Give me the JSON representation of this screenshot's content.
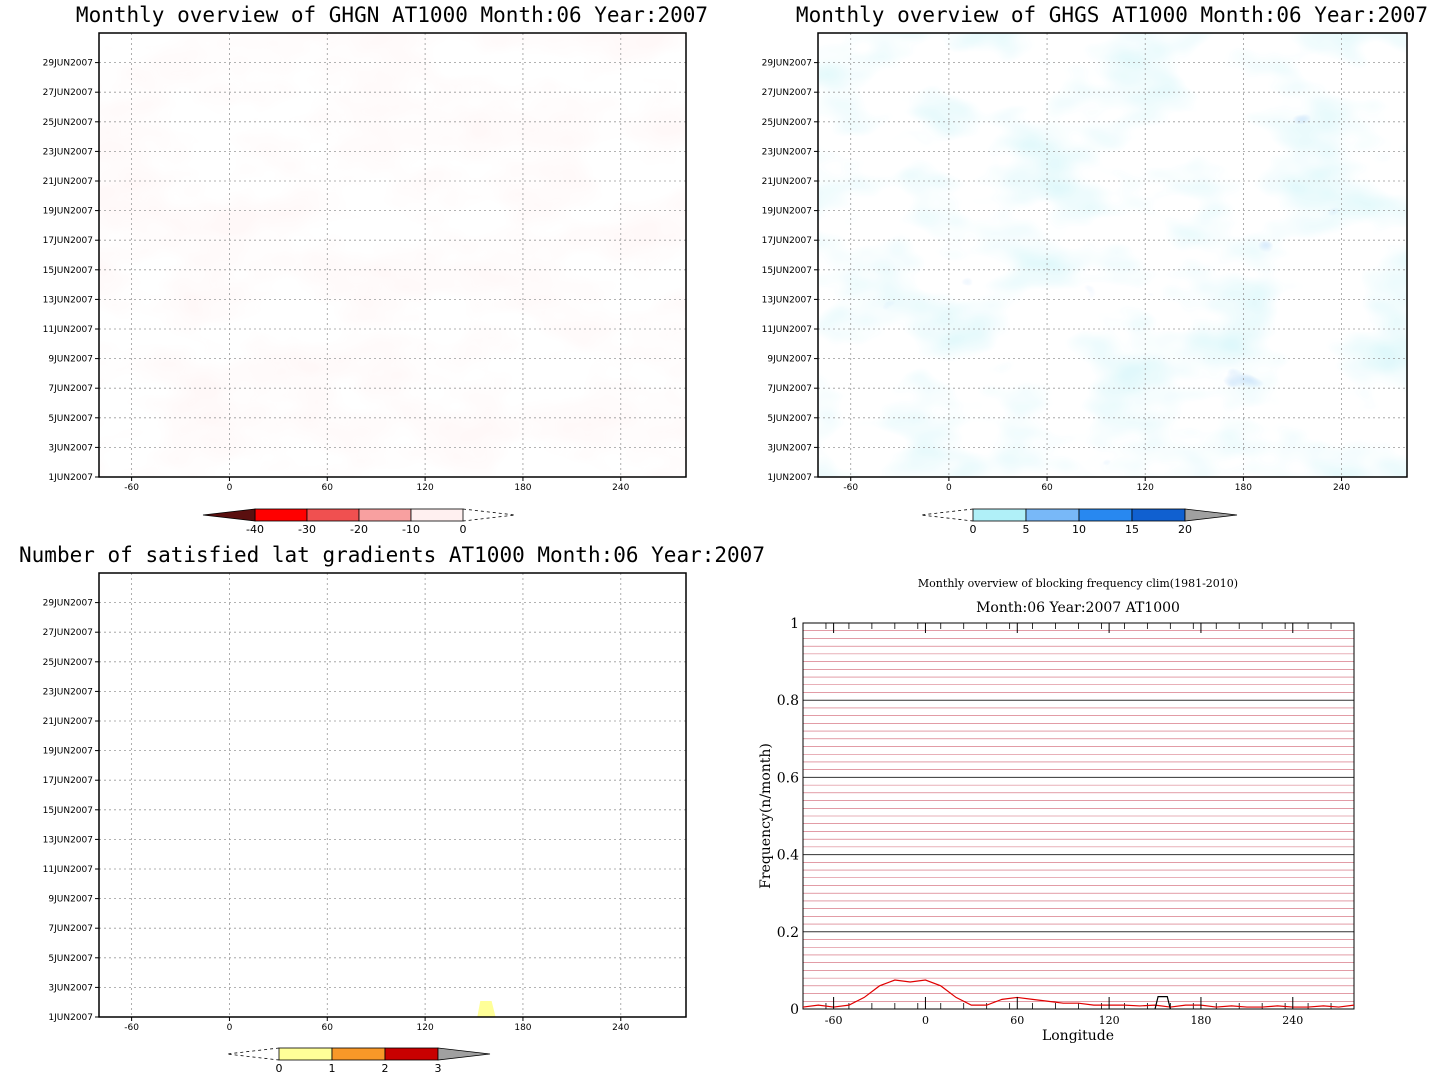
{
  "chart_data": [
    {
      "type": "heatmap",
      "title": "Monthly overview of GHGN AT1000 Month:06 Year:2007",
      "xticks": [
        "-60",
        "0",
        "60",
        "120",
        "180",
        "240"
      ],
      "xtick_values": [
        -60,
        0,
        60,
        120,
        180,
        240
      ],
      "xlim": [
        -80,
        280
      ],
      "yticks": [
        "1JUN2007",
        "3JUN2007",
        "5JUN2007",
        "7JUN2007",
        "9JUN2007",
        "11JUN2007",
        "13JUN2007",
        "15JUN2007",
        "17JUN2007",
        "19JUN2007",
        "21JUN2007",
        "23JUN2007",
        "25JUN2007",
        "27JUN2007",
        "29JUN2007"
      ],
      "colorbar": {
        "labels": [
          "-40",
          "-30",
          "-20",
          "-10",
          "0"
        ],
        "colors": [
          "#5a0f0f",
          "#ff0000",
          "#f05050",
          "#f8a0a0",
          "#fff0f0"
        ]
      },
      "fill_color": "#fff0f0"
    },
    {
      "type": "heatmap",
      "title": "Monthly overview of GHGS AT1000 Month:06 Year:2007",
      "xticks": [
        "-60",
        "0",
        "60",
        "120",
        "180",
        "240"
      ],
      "xtick_values": [
        -60,
        0,
        60,
        120,
        180,
        240
      ],
      "xlim": [
        -80,
        280
      ],
      "yticks": [
        "1JUN2007",
        "3JUN2007",
        "5JUN2007",
        "7JUN2007",
        "9JUN2007",
        "11JUN2007",
        "13JUN2007",
        "15JUN2007",
        "17JUN2007",
        "19JUN2007",
        "21JUN2007",
        "23JUN2007",
        "25JUN2007",
        "27JUN2007",
        "29JUN2007"
      ],
      "colorbar": {
        "labels": [
          "0",
          "5",
          "10",
          "15",
          "20"
        ],
        "colors": [
          "#b0f0f8",
          "#78b8f8",
          "#2888f0",
          "#1060d0",
          "#a0a0a0"
        ]
      },
      "fill_colors": [
        "#b0ecf4",
        "#7aaef0"
      ]
    },
    {
      "type": "heatmap",
      "title": "Number of satisfied lat gradients AT1000 Month:06 Year:2007",
      "xticks": [
        "-60",
        "0",
        "60",
        "120",
        "180",
        "240"
      ],
      "xtick_values": [
        -60,
        0,
        60,
        120,
        180,
        240
      ],
      "xlim": [
        -80,
        280
      ],
      "yticks": [
        "1JUN2007",
        "3JUN2007",
        "5JUN2007",
        "7JUN2007",
        "9JUN2007",
        "11JUN2007",
        "13JUN2007",
        "15JUN2007",
        "17JUN2007",
        "19JUN2007",
        "21JUN2007",
        "23JUN2007",
        "25JUN2007",
        "27JUN2007",
        "29JUN2007"
      ],
      "colorbar": {
        "labels": [
          "0",
          "1",
          "2",
          "3"
        ],
        "colors": [
          "#ffff98",
          "#f89828",
          "#c80000",
          "#a0a0a0"
        ]
      },
      "patch": {
        "lon": [
          152,
          162
        ],
        "day": [
          1,
          1.5
        ],
        "color": "#ffff98"
      }
    },
    {
      "type": "line",
      "title": "Monthly overview of blocking frequency clim(1981-2010)",
      "subtitle": "Month:06 Year:2007  AT1000",
      "xlabel": "Longitude",
      "ylabel": "Frequency(n/month)",
      "xlim": [
        -80,
        280
      ],
      "ylim": [
        0,
        1
      ],
      "xticks": [
        "-60",
        "0",
        "60",
        "120",
        "180",
        "240"
      ],
      "xtick_values": [
        -60,
        0,
        60,
        120,
        180,
        240
      ],
      "yticks": [
        "0",
        "0.2",
        "0.4",
        "0.6",
        "0.8",
        "1"
      ],
      "ytick_values": [
        0,
        0.2,
        0.4,
        0.6,
        0.8,
        1
      ],
      "series": [
        {
          "color": "#e00000",
          "x": [
            -80,
            -70,
            -60,
            -50,
            -40,
            -30,
            -20,
            -10,
            0,
            10,
            20,
            30,
            40,
            50,
            60,
            70,
            80,
            90,
            100,
            110,
            120,
            130,
            140,
            150,
            160,
            170,
            180,
            190,
            200,
            210,
            220,
            230,
            240,
            250,
            260,
            270,
            280
          ],
          "y": [
            0.005,
            0.01,
            0.005,
            0.01,
            0.03,
            0.06,
            0.075,
            0.07,
            0.075,
            0.06,
            0.03,
            0.01,
            0.01,
            0.025,
            0.03,
            0.025,
            0.02,
            0.015,
            0.015,
            0.01,
            0.01,
            0.01,
            0.008,
            0.01,
            0.005,
            0.01,
            0.01,
            0.005,
            0.008,
            0.005,
            0.005,
            0.008,
            0.005,
            0.005,
            0.008,
            0.005,
            0.01
          ]
        },
        {
          "color": "#000000",
          "x": [
            150,
            152,
            158,
            160
          ],
          "y": [
            0,
            0.032,
            0.032,
            0
          ]
        }
      ]
    }
  ]
}
